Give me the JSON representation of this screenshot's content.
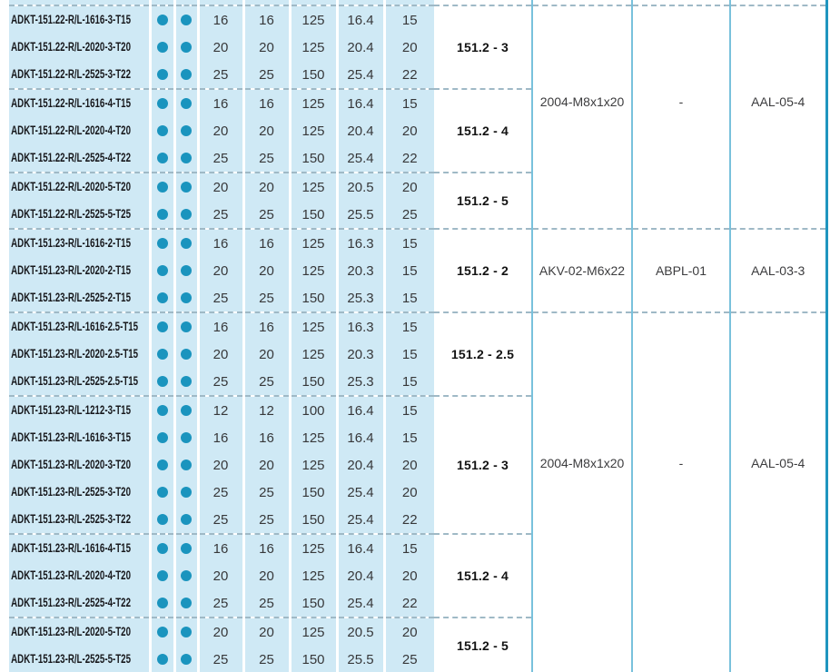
{
  "colors": {
    "row_bg": "#cfe9f5",
    "dot": "#1a94be",
    "divider_white": "#ffffff",
    "border_light_teal": "#79c1dc",
    "border_dark_teal": "#2095bf",
    "dash": "#9fb9c6",
    "part_text": "#17181c",
    "value_text": "#37383a"
  },
  "table": {
    "rows": [
      {
        "part": "ADKT-151.22-R/L-1616-3-T15",
        "dots": [
          true,
          true
        ],
        "values": [
          "16",
          "16",
          "125",
          "16.4",
          "15"
        ]
      },
      {
        "part": "ADKT-151.22-R/L-2020-3-T20",
        "dots": [
          true,
          true
        ],
        "values": [
          "20",
          "20",
          "125",
          "20.4",
          "20"
        ]
      },
      {
        "part": "ADKT-151.22-R/L-2525-3-T22",
        "dots": [
          true,
          true
        ],
        "values": [
          "25",
          "25",
          "150",
          "25.4",
          "22"
        ]
      },
      {
        "part": "ADKT-151.22-R/L-1616-4-T15",
        "dots": [
          true,
          true
        ],
        "values": [
          "16",
          "16",
          "125",
          "16.4",
          "15"
        ]
      },
      {
        "part": "ADKT-151.22-R/L-2020-4-T20",
        "dots": [
          true,
          true
        ],
        "values": [
          "20",
          "20",
          "125",
          "20.4",
          "20"
        ]
      },
      {
        "part": "ADKT-151.22-R/L-2525-4-T22",
        "dots": [
          true,
          true
        ],
        "values": [
          "25",
          "25",
          "150",
          "25.4",
          "22"
        ]
      },
      {
        "part": "ADKT-151.22-R/L-2020-5-T20",
        "dots": [
          true,
          true
        ],
        "values": [
          "20",
          "20",
          "125",
          "20.5",
          "20"
        ]
      },
      {
        "part": "ADKT-151.22-R/L-2525-5-T25",
        "dots": [
          true,
          true
        ],
        "values": [
          "25",
          "25",
          "150",
          "25.5",
          "25"
        ]
      },
      {
        "part": "ADKT-151.23-R/L-1616-2-T15",
        "dots": [
          true,
          true
        ],
        "values": [
          "16",
          "16",
          "125",
          "16.3",
          "15"
        ]
      },
      {
        "part": "ADKT-151.23-R/L-2020-2-T15",
        "dots": [
          true,
          true
        ],
        "values": [
          "20",
          "20",
          "125",
          "20.3",
          "15"
        ]
      },
      {
        "part": "ADKT-151.23-R/L-2525-2-T15",
        "dots": [
          true,
          true
        ],
        "values": [
          "25",
          "25",
          "150",
          "25.3",
          "15"
        ]
      },
      {
        "part": "ADKT-151.23-R/L-1616-2.5-T15",
        "dots": [
          true,
          true
        ],
        "values": [
          "16",
          "16",
          "125",
          "16.3",
          "15"
        ]
      },
      {
        "part": "ADKT-151.23-R/L-2020-2.5-T15",
        "dots": [
          true,
          true
        ],
        "values": [
          "20",
          "20",
          "125",
          "20.3",
          "15"
        ]
      },
      {
        "part": "ADKT-151.23-R/L-2525-2.5-T15",
        "dots": [
          true,
          true
        ],
        "values": [
          "25",
          "25",
          "150",
          "25.3",
          "15"
        ]
      },
      {
        "part": "ADKT-151.23-R/L-1212-3-T15",
        "dots": [
          true,
          true
        ],
        "values": [
          "12",
          "12",
          "100",
          "16.4",
          "15"
        ]
      },
      {
        "part": "ADKT-151.23-R/L-1616-3-T15",
        "dots": [
          true,
          true
        ],
        "values": [
          "16",
          "16",
          "125",
          "16.4",
          "15"
        ]
      },
      {
        "part": "ADKT-151.23-R/L-2020-3-T20",
        "dots": [
          true,
          true
        ],
        "values": [
          "20",
          "20",
          "125",
          "20.4",
          "20"
        ]
      },
      {
        "part": "ADKT-151.23-R/L-2525-3-T20",
        "dots": [
          true,
          true
        ],
        "values": [
          "25",
          "25",
          "150",
          "25.4",
          "20"
        ]
      },
      {
        "part": "ADKT-151.23-R/L-2525-3-T22",
        "dots": [
          true,
          true
        ],
        "values": [
          "25",
          "25",
          "150",
          "25.4",
          "22"
        ]
      },
      {
        "part": "ADKT-151.23-R/L-1616-4-T15",
        "dots": [
          true,
          true
        ],
        "values": [
          "16",
          "16",
          "125",
          "16.4",
          "15"
        ]
      },
      {
        "part": "ADKT-151.23-R/L-2020-4-T20",
        "dots": [
          true,
          true
        ],
        "values": [
          "20",
          "20",
          "125",
          "20.4",
          "20"
        ]
      },
      {
        "part": "ADKT-151.23-R/L-2525-4-T22",
        "dots": [
          true,
          true
        ],
        "values": [
          "25",
          "25",
          "150",
          "25.4",
          "22"
        ]
      },
      {
        "part": "ADKT-151.23-R/L-2020-5-T20",
        "dots": [
          true,
          true
        ],
        "values": [
          "20",
          "20",
          "125",
          "20.5",
          "20"
        ]
      },
      {
        "part": "ADKT-151.23-R/L-2525-5-T25",
        "dots": [
          true,
          true
        ],
        "values": [
          "25",
          "25",
          "150",
          "25.5",
          "25"
        ]
      }
    ],
    "groups": [
      {
        "label": "151.2 - 3",
        "start": 0,
        "span": 3
      },
      {
        "label": "151.2 - 4",
        "start": 3,
        "span": 3
      },
      {
        "label": "151.2 - 5",
        "start": 6,
        "span": 2
      },
      {
        "label": "151.2 - 2",
        "start": 8,
        "span": 3
      },
      {
        "label": "151.2 - 2.5",
        "start": 11,
        "span": 3
      },
      {
        "label": "151.2 - 3",
        "start": 14,
        "span": 5
      },
      {
        "label": "151.2 - 4",
        "start": 19,
        "span": 3
      },
      {
        "label": "151.2 - 5",
        "start": 22,
        "span": 2
      }
    ],
    "accessory_spans": [
      {
        "start": 0,
        "span": 8,
        "screw": "2004-M8x1x20",
        "pad": "-",
        "wrench": "AAL-05-4"
      },
      {
        "start": 8,
        "span": 3,
        "screw": "AKV-02-M6x22",
        "pad": "ABPL-01",
        "wrench": "AAL-03-3"
      },
      {
        "start": 11,
        "span": 13,
        "screw": "2004-M8x1x20",
        "pad": "-",
        "wrench": "AAL-05-4"
      }
    ]
  }
}
